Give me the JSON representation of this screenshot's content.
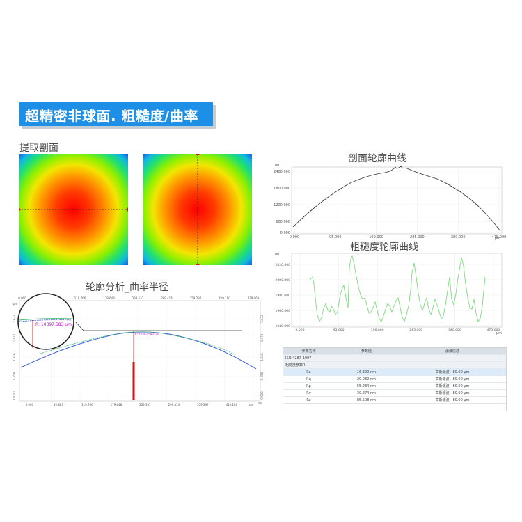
{
  "banner": {
    "title": "超精密非球面. 粗糙度/曲率"
  },
  "sections": {
    "extract": "提取剖面",
    "profile": "剖面轮廓曲线",
    "roughness": "粗糙度轮廓曲线",
    "curvature": "轮廓分析_曲率半径"
  },
  "colors": {
    "banner": "#1e8fe6",
    "profile_line": "#333333",
    "roughness_line": "#7fd97f",
    "marker": "#e01010"
  },
  "profile_chart": {
    "unit_y": "nm",
    "unit_x": "μm",
    "y_ticks": [
      "2400.000",
      "1800.000",
      "1200.000",
      "600.000",
      "0.000"
    ],
    "x_ticks": [
      "0.000",
      "95.000",
      "190.000",
      "285.000",
      "380.000",
      "475.000"
    ]
  },
  "roughness_chart": {
    "unit_y": "nm",
    "unit_x": "μm",
    "y_ticks": [
      "2020.000",
      "2000.000",
      "1980.000",
      "1960.000",
      "1940.000"
    ],
    "x_ticks": [
      "0.000",
      "95.000",
      "190.000",
      "285.000",
      "380.000",
      "475.000"
    ]
  },
  "curvature_chart": {
    "left_unit": "μm",
    "right_unit": "μm",
    "bottom_unit": "μm",
    "top_ticks": [
      "0.000",
      "59.883",
      "119.766",
      "179.648",
      "239.531",
      "299.414",
      "359.297",
      "419.180",
      "479.063"
    ],
    "bottom_ticks": [
      "0.000",
      "59.883",
      "119.766",
      "179.648",
      "239.531",
      "299.414",
      "359.297",
      "419.180"
    ],
    "left_ticks": [
      "2.632",
      "1.974",
      "1.316",
      "0.658",
      "0.000"
    ],
    "right_ticks": [
      "2.632",
      "1.974",
      "1.316",
      "0.658",
      "0.000"
    ],
    "radius_label": "R: 10397.583 um",
    "radius_label_small": "R: 10397.583 um"
  },
  "params_table": {
    "headers": [
      "参数名称",
      "参数值",
      "滤波信息"
    ],
    "standard": "ISO 4287-1997",
    "group": "粗糙度参数R",
    "rows": [
      {
        "name": "Ra",
        "value": "16.300 nm",
        "filter": "高斯滤波，80.00 μm"
      },
      {
        "name": "Rq",
        "value": "20.032 nm",
        "filter": "高斯滤波，80.00 μm"
      },
      {
        "name": "Rp",
        "value": "55.234 nm",
        "filter": "高斯滤波，80.00 μm"
      },
      {
        "name": "Rv",
        "value": "30.274 nm",
        "filter": "高斯滤波，80.00 μm"
      },
      {
        "name": "Rz",
        "value": "85.508 nm",
        "filter": "高斯滤波，80.00 μm"
      }
    ]
  }
}
